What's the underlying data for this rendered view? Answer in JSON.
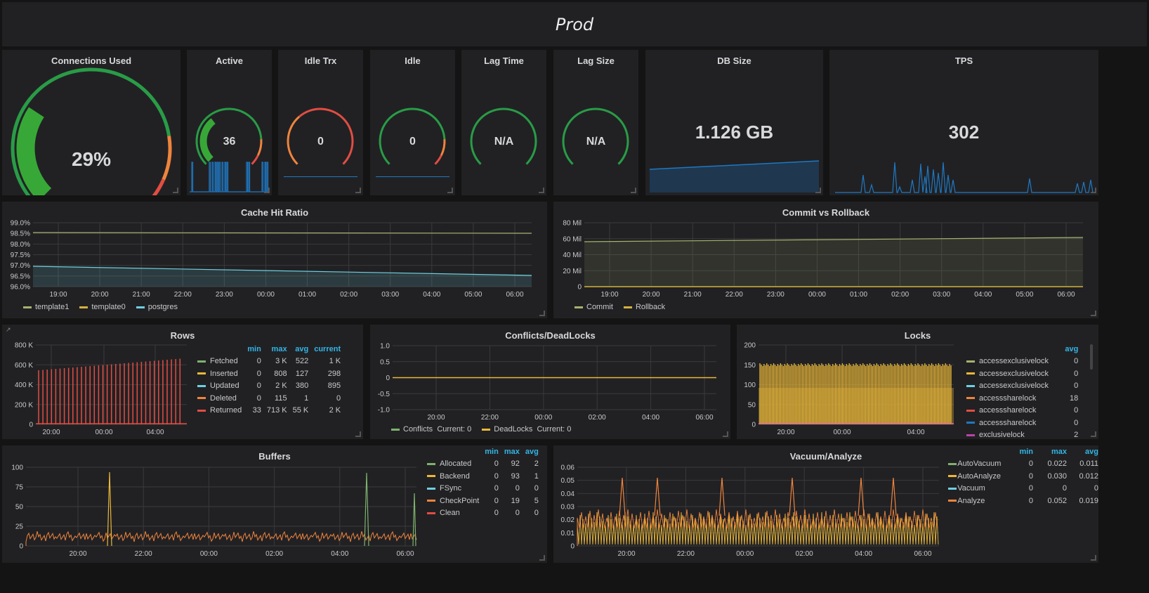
{
  "dashboard": {
    "title": "Prod"
  },
  "colors": {
    "green": "#299c46",
    "yellow": "#d4b23c",
    "orange": "#ef843c",
    "red": "#e24d42",
    "lightblue": "#6ed0e0",
    "blue": "#1f78c1",
    "pink": "#e46ba0",
    "olive": "#a6b36d",
    "purple": "#ba43a9",
    "bar_red": "#e24d42"
  },
  "gauges": {
    "connections": {
      "title": "Connections Used",
      "value": "29%",
      "fraction": 0.29
    },
    "active": {
      "title": "Active",
      "value": "36",
      "fraction": 0.36
    },
    "idle_trx": {
      "title": "Idle Trx",
      "value": "0",
      "fraction": 0
    },
    "idle": {
      "title": "Idle",
      "value": "0",
      "fraction": 0
    },
    "lag_time": {
      "title": "Lag Time",
      "value": "N/A",
      "fraction": 0
    },
    "lag_size": {
      "title": "Lag Size",
      "value": "N/A",
      "fraction": 0
    }
  },
  "stats": {
    "db_size": {
      "title": "DB Size",
      "value": "1.126 GB"
    },
    "tps": {
      "title": "TPS",
      "value": "302"
    }
  },
  "cache_hit": {
    "title": "Cache Hit Ratio",
    "y_ticks": [
      "99.0%",
      "98.5%",
      "98.0%",
      "97.5%",
      "97.0%",
      "96.5%",
      "96.0%"
    ],
    "x_ticks": [
      "19:00",
      "20:00",
      "21:00",
      "22:00",
      "23:00",
      "00:00",
      "01:00",
      "02:00",
      "03:00",
      "04:00",
      "05:00",
      "06:00"
    ],
    "legend": [
      {
        "name": "template1",
        "color": "#a6b36d"
      },
      {
        "name": "template0",
        "color": "#d4b23c"
      },
      {
        "name": "postgres",
        "color": "#6ed0e0"
      }
    ]
  },
  "commit_rollback": {
    "title": "Commit vs Rollback",
    "y_ticks": [
      "80 Mil",
      "60 Mil",
      "40 Mil",
      "20 Mil",
      "0"
    ],
    "x_ticks": [
      "19:00",
      "20:00",
      "21:00",
      "22:00",
      "23:00",
      "00:00",
      "01:00",
      "02:00",
      "03:00",
      "04:00",
      "05:00",
      "06:00"
    ],
    "legend": [
      {
        "name": "Commit",
        "color": "#a6b36d"
      },
      {
        "name": "Rollback",
        "color": "#d4b23c"
      }
    ]
  },
  "rows": {
    "title": "Rows",
    "y_ticks": [
      "800 K",
      "600 K",
      "400 K",
      "200 K",
      "0"
    ],
    "x_ticks": [
      "20:00",
      "00:00",
      "04:00"
    ],
    "headers": [
      "min",
      "max",
      "avg",
      "current"
    ],
    "series": [
      {
        "name": "Fetched",
        "color": "#7eb26d",
        "min": "0",
        "max": "3 K",
        "avg": "522",
        "current": "1 K"
      },
      {
        "name": "Inserted",
        "color": "#eab839",
        "min": "0",
        "max": "808",
        "avg": "127",
        "current": "298"
      },
      {
        "name": "Updated",
        "color": "#6ed0e0",
        "min": "0",
        "max": "2 K",
        "avg": "380",
        "current": "895"
      },
      {
        "name": "Deleted",
        "color": "#ef843c",
        "min": "0",
        "max": "115",
        "avg": "1",
        "current": "0"
      },
      {
        "name": "Returned",
        "color": "#e24d42",
        "min": "33",
        "max": "713 K",
        "avg": "55 K",
        "current": "2 K"
      }
    ]
  },
  "conflicts": {
    "title": "Conflicts/DeadLocks",
    "y_ticks": [
      "1.0",
      "0.5",
      "0",
      "-0.5",
      "-1.0"
    ],
    "x_ticks": [
      "20:00",
      "22:00",
      "00:00",
      "02:00",
      "04:00",
      "06:00"
    ],
    "legend": [
      {
        "name": "Conflicts",
        "current": "Current: 0",
        "color": "#7eb26d"
      },
      {
        "name": "DeadLocks",
        "current": "Current: 0",
        "color": "#eab839"
      }
    ]
  },
  "locks": {
    "title": "Locks",
    "y_ticks": [
      "200",
      "150",
      "100",
      "50",
      "0"
    ],
    "x_ticks": [
      "20:00",
      "00:00",
      "04:00"
    ],
    "header": "avg",
    "series": [
      {
        "name": "accessexclusivelock",
        "color": "#a6b36d",
        "avg": "0"
      },
      {
        "name": "accessexclusivelock",
        "color": "#eab839",
        "avg": "0"
      },
      {
        "name": "accessexclusivelock",
        "color": "#6ed0e0",
        "avg": "0"
      },
      {
        "name": "accesssharelock",
        "color": "#ef843c",
        "avg": "18"
      },
      {
        "name": "accesssharelock",
        "color": "#e24d42",
        "avg": "0"
      },
      {
        "name": "accesssharelock",
        "color": "#1f78c1",
        "avg": "0"
      },
      {
        "name": "exclusivelock",
        "color": "#ba43a9",
        "avg": "2"
      }
    ]
  },
  "buffers": {
    "title": "Buffers",
    "y_ticks": [
      "100",
      "75",
      "50",
      "25",
      "0"
    ],
    "x_ticks": [
      "20:00",
      "22:00",
      "00:00",
      "02:00",
      "04:00",
      "06:00"
    ],
    "headers": [
      "min",
      "max",
      "avg"
    ],
    "series": [
      {
        "name": "Allocated",
        "color": "#7eb26d",
        "min": "0",
        "max": "92",
        "avg": "2"
      },
      {
        "name": "Backend",
        "color": "#eab839",
        "min": "0",
        "max": "93",
        "avg": "1"
      },
      {
        "name": "FSync",
        "color": "#6ed0e0",
        "min": "0",
        "max": "0",
        "avg": "0"
      },
      {
        "name": "CheckPoint",
        "color": "#ef843c",
        "min": "0",
        "max": "19",
        "avg": "5"
      },
      {
        "name": "Clean",
        "color": "#e24d42",
        "min": "0",
        "max": "0",
        "avg": "0"
      }
    ]
  },
  "vacuum": {
    "title": "Vacuum/Analyze",
    "y_ticks": [
      "0.06",
      "0.05",
      "0.04",
      "0.03",
      "0.02",
      "0.01",
      "0"
    ],
    "x_ticks": [
      "20:00",
      "22:00",
      "00:00",
      "02:00",
      "04:00",
      "06:00"
    ],
    "headers": [
      "min",
      "max",
      "avg"
    ],
    "series": [
      {
        "name": "AutoVacuum",
        "color": "#7eb26d",
        "min": "0",
        "max": "0.022",
        "avg": "0.011"
      },
      {
        "name": "AutoAnalyze",
        "color": "#eab839",
        "min": "0",
        "max": "0.030",
        "avg": "0.012"
      },
      {
        "name": "Vacuum",
        "color": "#6ed0e0",
        "min": "0",
        "max": "0",
        "avg": "0"
      },
      {
        "name": "Analyze",
        "color": "#ef843c",
        "min": "0",
        "max": "0.052",
        "avg": "0.019"
      }
    ]
  }
}
